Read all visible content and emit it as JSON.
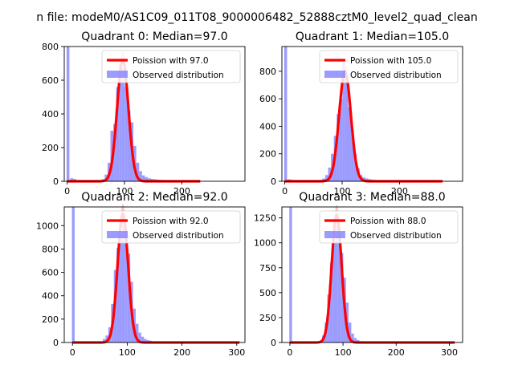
{
  "suptitle": "n file: modeM0/AS1C09_011T08_9000006482_52888cztM0_level2_quad_clean",
  "colors": {
    "hist": "#7b7bff",
    "hist_alpha": 0.75,
    "poisson": "#ff0000",
    "poisson_band": "#ff9a9a",
    "axis": "#000000"
  },
  "legend": {
    "placement": "upper right"
  },
  "chart_data": [
    {
      "type": "histogram",
      "title": "Quadrant 0: Median=97.0",
      "xlim": [
        -5,
        310
      ],
      "ylim": [
        0,
        800
      ],
      "xticks": [
        0,
        100,
        200
      ],
      "yticks": [
        0,
        200,
        400,
        600,
        800
      ],
      "median": 97.0,
      "poisson_label": "Poission with 97.0",
      "hist_label": "Observed distribution",
      "spike": {
        "x": 1.5,
        "width": 5,
        "height": 800
      },
      "bins_width": 5,
      "bins": [
        {
          "x": 8,
          "y": 18
        },
        {
          "x": 13,
          "y": 14
        },
        {
          "x": 18,
          "y": 6
        },
        {
          "x": 23,
          "y": 4
        },
        {
          "x": 28,
          "y": 3
        },
        {
          "x": 33,
          "y": 2
        },
        {
          "x": 38,
          "y": 2
        },
        {
          "x": 43,
          "y": 2
        },
        {
          "x": 48,
          "y": 3
        },
        {
          "x": 53,
          "y": 3
        },
        {
          "x": 58,
          "y": 5
        },
        {
          "x": 63,
          "y": 12
        },
        {
          "x": 68,
          "y": 40
        },
        {
          "x": 73,
          "y": 110
        },
        {
          "x": 78,
          "y": 300
        },
        {
          "x": 83,
          "y": 340
        },
        {
          "x": 88,
          "y": 560
        },
        {
          "x": 93,
          "y": 700
        },
        {
          "x": 98,
          "y": 670
        },
        {
          "x": 103,
          "y": 560
        },
        {
          "x": 108,
          "y": 420
        },
        {
          "x": 113,
          "y": 350
        },
        {
          "x": 118,
          "y": 210
        },
        {
          "x": 123,
          "y": 110
        },
        {
          "x": 128,
          "y": 60
        },
        {
          "x": 133,
          "y": 35
        },
        {
          "x": 138,
          "y": 25
        },
        {
          "x": 143,
          "y": 18
        },
        {
          "x": 148,
          "y": 14
        },
        {
          "x": 153,
          "y": 12
        },
        {
          "x": 158,
          "y": 10
        },
        {
          "x": 163,
          "y": 8
        },
        {
          "x": 168,
          "y": 6
        },
        {
          "x": 173,
          "y": 5
        },
        {
          "x": 178,
          "y": 4
        },
        {
          "x": 183,
          "y": 3
        },
        {
          "x": 188,
          "y": 2
        },
        {
          "x": 193,
          "y": 2
        }
      ],
      "poisson_peak": 720,
      "poisson_x_range": [
        0,
        232
      ]
    },
    {
      "type": "histogram",
      "title": "Quadrant 1: Median=105.0",
      "xlim": [
        -5,
        310
      ],
      "ylim": [
        0,
        980
      ],
      "xticks": [
        0,
        100,
        200
      ],
      "yticks": [
        0,
        200,
        400,
        600,
        800
      ],
      "median": 105.0,
      "poisson_label": "Poission with 105.0",
      "hist_label": "Observed distribution",
      "spike": {
        "x": 1.5,
        "width": 5,
        "height": 980
      },
      "bins_width": 5,
      "bins": [
        {
          "x": 8,
          "y": 14
        },
        {
          "x": 13,
          "y": 10
        },
        {
          "x": 18,
          "y": 6
        },
        {
          "x": 23,
          "y": 4
        },
        {
          "x": 28,
          "y": 3
        },
        {
          "x": 33,
          "y": 2
        },
        {
          "x": 38,
          "y": 2
        },
        {
          "x": 43,
          "y": 2
        },
        {
          "x": 48,
          "y": 3
        },
        {
          "x": 53,
          "y": 4
        },
        {
          "x": 58,
          "y": 6
        },
        {
          "x": 63,
          "y": 10
        },
        {
          "x": 68,
          "y": 20
        },
        {
          "x": 73,
          "y": 45
        },
        {
          "x": 78,
          "y": 100
        },
        {
          "x": 83,
          "y": 200
        },
        {
          "x": 88,
          "y": 330
        },
        {
          "x": 93,
          "y": 490
        },
        {
          "x": 98,
          "y": 600
        },
        {
          "x": 103,
          "y": 880
        },
        {
          "x": 108,
          "y": 770
        },
        {
          "x": 113,
          "y": 540
        },
        {
          "x": 118,
          "y": 370
        },
        {
          "x": 123,
          "y": 200
        },
        {
          "x": 128,
          "y": 95
        },
        {
          "x": 133,
          "y": 45
        },
        {
          "x": 138,
          "y": 28
        },
        {
          "x": 143,
          "y": 20
        },
        {
          "x": 148,
          "y": 15
        },
        {
          "x": 153,
          "y": 12
        },
        {
          "x": 158,
          "y": 10
        },
        {
          "x": 163,
          "y": 8
        },
        {
          "x": 168,
          "y": 6
        },
        {
          "x": 173,
          "y": 4
        },
        {
          "x": 178,
          "y": 3
        },
        {
          "x": 183,
          "y": 2
        }
      ],
      "poisson_peak": 800,
      "poisson_x_range": [
        0,
        275
      ]
    },
    {
      "type": "histogram",
      "title": "Quadrant 2: Median=92.0",
      "xlim": [
        -15,
        315
      ],
      "ylim": [
        0,
        1160
      ],
      "xticks": [
        0,
        100,
        200,
        300
      ],
      "yticks": [
        0,
        200,
        400,
        600,
        800,
        1000
      ],
      "median": 92.0,
      "poisson_label": "Poission with 92.0",
      "hist_label": "Observed distribution",
      "spike": {
        "x": 1.5,
        "width": 5,
        "height": 1160
      },
      "bins_width": 5,
      "bins": [
        {
          "x": 8,
          "y": 2
        },
        {
          "x": 13,
          "y": 2
        },
        {
          "x": 18,
          "y": 2
        },
        {
          "x": 23,
          "y": 2
        },
        {
          "x": 28,
          "y": 2
        },
        {
          "x": 33,
          "y": 3
        },
        {
          "x": 38,
          "y": 3
        },
        {
          "x": 43,
          "y": 4
        },
        {
          "x": 48,
          "y": 6
        },
        {
          "x": 53,
          "y": 10
        },
        {
          "x": 58,
          "y": 30
        },
        {
          "x": 63,
          "y": 60
        },
        {
          "x": 68,
          "y": 130
        },
        {
          "x": 73,
          "y": 330
        },
        {
          "x": 78,
          "y": 620
        },
        {
          "x": 83,
          "y": 810
        },
        {
          "x": 88,
          "y": 920
        },
        {
          "x": 93,
          "y": 1040
        },
        {
          "x": 98,
          "y": 930
        },
        {
          "x": 103,
          "y": 760
        },
        {
          "x": 108,
          "y": 520
        },
        {
          "x": 113,
          "y": 290
        },
        {
          "x": 118,
          "y": 160
        },
        {
          "x": 123,
          "y": 85
        },
        {
          "x": 128,
          "y": 50
        },
        {
          "x": 133,
          "y": 30
        },
        {
          "x": 138,
          "y": 20
        },
        {
          "x": 143,
          "y": 15
        },
        {
          "x": 148,
          "y": 10
        },
        {
          "x": 153,
          "y": 7
        },
        {
          "x": 158,
          "y": 5
        },
        {
          "x": 163,
          "y": 4
        },
        {
          "x": 168,
          "y": 3
        },
        {
          "x": 173,
          "y": 2
        }
      ],
      "poisson_peak": 1100,
      "poisson_x_range": [
        0,
        305
      ]
    },
    {
      "type": "histogram",
      "title": "Quadrant 3: Median=88.0",
      "xlim": [
        -15,
        325
      ],
      "ylim": [
        0,
        1360
      ],
      "xticks": [
        0,
        100,
        200,
        300
      ],
      "yticks": [
        0,
        250,
        500,
        750,
        1000,
        1250
      ],
      "median": 88.0,
      "poisson_label": "Poission with 88.0",
      "hist_label": "Observed distribution",
      "spike": {
        "x": 1.5,
        "width": 5,
        "height": 1360
      },
      "bins_width": 5,
      "bins": [
        {
          "x": 8,
          "y": 2
        },
        {
          "x": 13,
          "y": 2
        },
        {
          "x": 18,
          "y": 2
        },
        {
          "x": 23,
          "y": 2
        },
        {
          "x": 28,
          "y": 2
        },
        {
          "x": 33,
          "y": 2
        },
        {
          "x": 38,
          "y": 3
        },
        {
          "x": 43,
          "y": 3
        },
        {
          "x": 48,
          "y": 5
        },
        {
          "x": 53,
          "y": 8
        },
        {
          "x": 58,
          "y": 20
        },
        {
          "x": 63,
          "y": 70
        },
        {
          "x": 68,
          "y": 200
        },
        {
          "x": 73,
          "y": 480
        },
        {
          "x": 78,
          "y": 800
        },
        {
          "x": 83,
          "y": 1000
        },
        {
          "x": 88,
          "y": 1180
        },
        {
          "x": 93,
          "y": 1100
        },
        {
          "x": 98,
          "y": 900
        },
        {
          "x": 103,
          "y": 650
        },
        {
          "x": 108,
          "y": 400
        },
        {
          "x": 113,
          "y": 200
        },
        {
          "x": 118,
          "y": 90
        },
        {
          "x": 123,
          "y": 45
        },
        {
          "x": 128,
          "y": 25
        },
        {
          "x": 133,
          "y": 14
        },
        {
          "x": 138,
          "y": 8
        },
        {
          "x": 143,
          "y": 5
        },
        {
          "x": 148,
          "y": 3
        },
        {
          "x": 153,
          "y": 2
        },
        {
          "x": 158,
          "y": 2
        }
      ],
      "poisson_peak": 1280,
      "poisson_x_range": [
        0,
        310
      ]
    }
  ]
}
